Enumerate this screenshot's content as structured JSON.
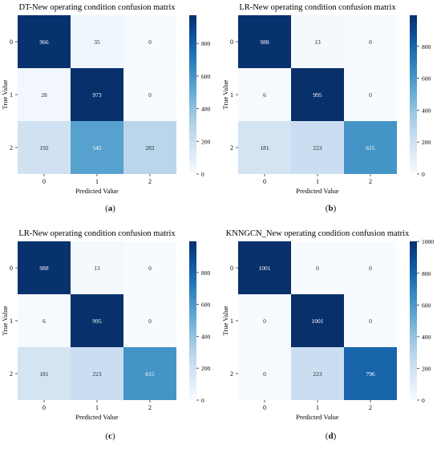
{
  "colors": {
    "cmap_low": "#f7fbff",
    "cmap_high": "#08306b",
    "text_dark": "#262626",
    "text_light": "#ffffff"
  },
  "chart_data": [
    {
      "type": "heatmap",
      "title": "DT-New operating condition confusion matrix",
      "xlabel": "Predicted Value",
      "ylabel": "True Value",
      "x_categories": [
        "0",
        "1",
        "2"
      ],
      "y_categories": [
        "0",
        "1",
        "2"
      ],
      "values": [
        [
          966,
          35,
          0
        ],
        [
          28,
          973,
          0
        ],
        [
          192,
          545,
          282
        ]
      ],
      "vmin": 0,
      "vmax": 973,
      "colorbar_ticks": [
        0,
        200,
        400,
        600,
        800
      ],
      "caption_label": "a"
    },
    {
      "type": "heatmap",
      "title": "LR-New operating condition confusion matrix",
      "xlabel": "Predicted Value",
      "ylabel": "True Value",
      "x_categories": [
        "0",
        "1",
        "2"
      ],
      "y_categories": [
        "0",
        "1",
        "2"
      ],
      "values": [
        [
          988,
          13,
          0
        ],
        [
          6,
          995,
          0
        ],
        [
          181,
          223,
          615
        ]
      ],
      "vmin": 0,
      "vmax": 995,
      "colorbar_ticks": [
        0,
        200,
        400,
        600,
        800
      ],
      "caption_label": "b"
    },
    {
      "type": "heatmap",
      "title": "LR-New operating condition confusion matrix",
      "xlabel": "Predicted Value",
      "ylabel": "True Value",
      "x_categories": [
        "0",
        "1",
        "2"
      ],
      "y_categories": [
        "0",
        "1",
        "2"
      ],
      "values": [
        [
          988,
          13,
          0
        ],
        [
          6,
          995,
          0
        ],
        [
          181,
          223,
          615
        ]
      ],
      "vmin": 0,
      "vmax": 995,
      "colorbar_ticks": [
        0,
        200,
        400,
        600,
        800
      ],
      "caption_label": "c"
    },
    {
      "type": "heatmap",
      "title": "KNNGCN_New operating condition confusion matrix",
      "xlabel": "Predicted Value",
      "ylabel": "True Value",
      "x_categories": [
        "0",
        "1",
        "2"
      ],
      "y_categories": [
        "0",
        "1",
        "2"
      ],
      "values": [
        [
          1001,
          0,
          0
        ],
        [
          0,
          1001,
          0
        ],
        [
          0,
          223,
          796
        ]
      ],
      "vmin": 0,
      "vmax": 1001,
      "colorbar_ticks": [
        0,
        200,
        400,
        600,
        800,
        1000
      ],
      "caption_label": "d"
    }
  ]
}
